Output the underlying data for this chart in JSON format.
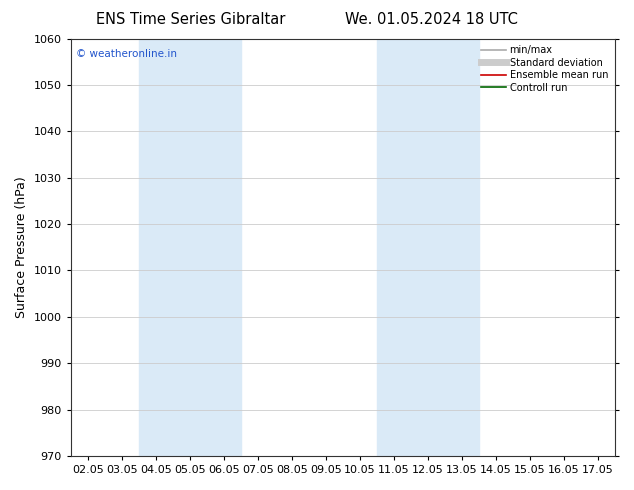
{
  "title_left": "ENS Time Series Gibraltar",
  "title_right": "We. 01.05.2024 18 UTC",
  "ylabel": "Surface Pressure (hPa)",
  "ylim": [
    970,
    1060
  ],
  "yticks": [
    970,
    980,
    990,
    1000,
    1010,
    1020,
    1030,
    1040,
    1050,
    1060
  ],
  "xtick_labels": [
    "02.05",
    "03.05",
    "04.05",
    "05.05",
    "06.05",
    "07.05",
    "08.05",
    "09.05",
    "10.05",
    "11.05",
    "12.05",
    "13.05",
    "14.05",
    "15.05",
    "16.05",
    "17.05"
  ],
  "blue_bands": [
    {
      "xstart": 2,
      "xend": 4
    },
    {
      "xstart": 9,
      "xend": 11
    }
  ],
  "band_color": "#daeaf7",
  "watermark": "© weatheronline.in",
  "legend_items": [
    {
      "label": "min/max",
      "color": "#aaaaaa",
      "lw": 1.2
    },
    {
      "label": "Standard deviation",
      "color": "#cccccc",
      "lw": 5
    },
    {
      "label": "Ensemble mean run",
      "color": "#cc0000",
      "lw": 1.2
    },
    {
      "label": "Controll run",
      "color": "#006600",
      "lw": 1.2
    }
  ],
  "bg_color": "#ffffff",
  "title_fontsize": 10.5,
  "tick_fontsize": 8,
  "ylabel_fontsize": 9
}
